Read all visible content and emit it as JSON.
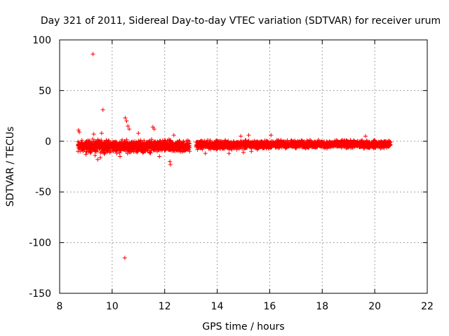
{
  "chart_data": {
    "type": "scatter",
    "title": "Day 321 of 2011, Sidereal Day-to-day VTEC variation (SDTVAR) for receiver urum",
    "xlabel": "GPS time / hours",
    "ylabel": "SDTVAR / TECUs",
    "xlim": [
      8,
      22
    ],
    "ylim": [
      -150,
      100
    ],
    "xticks": [
      8,
      10,
      12,
      14,
      16,
      18,
      20,
      22
    ],
    "yticks": [
      -150,
      -100,
      -50,
      0,
      50,
      100
    ],
    "grid": true,
    "marker": "+",
    "color": "#ff0000",
    "gap": [
      12.95,
      13.2
    ],
    "dense_band": [
      {
        "x_start": 8.7,
        "x_end": 12.95,
        "y_low": -13,
        "y_high": 3
      },
      {
        "x_start": 13.2,
        "x_end": 16.0,
        "y_low": -9,
        "y_high": 2
      },
      {
        "x_start": 16.0,
        "x_end": 20.6,
        "y_low": -8,
        "y_high": 2
      }
    ],
    "outliers": [
      {
        "x": 9.27,
        "y": 86
      },
      {
        "x": 9.65,
        "y": 31
      },
      {
        "x": 10.48,
        "y": -115
      },
      {
        "x": 10.5,
        "y": 23
      },
      {
        "x": 10.55,
        "y": 20
      },
      {
        "x": 10.6,
        "y": 15
      },
      {
        "x": 10.65,
        "y": 12
      },
      {
        "x": 8.72,
        "y": 11
      },
      {
        "x": 8.75,
        "y": 9
      },
      {
        "x": 9.3,
        "y": 7
      },
      {
        "x": 9.6,
        "y": 8
      },
      {
        "x": 11.55,
        "y": 14
      },
      {
        "x": 11.6,
        "y": 12
      },
      {
        "x": 11.0,
        "y": 8
      },
      {
        "x": 12.35,
        "y": 6
      },
      {
        "x": 12.2,
        "y": -20
      },
      {
        "x": 12.22,
        "y": -23
      },
      {
        "x": 9.0,
        "y": -13
      },
      {
        "x": 9.35,
        "y": -14
      },
      {
        "x": 9.45,
        "y": -18
      },
      {
        "x": 9.55,
        "y": -16
      },
      {
        "x": 10.3,
        "y": -15
      },
      {
        "x": 11.8,
        "y": -15
      },
      {
        "x": 8.7,
        "y": -10
      },
      {
        "x": 13.55,
        "y": -12
      },
      {
        "x": 14.45,
        "y": -12
      },
      {
        "x": 15.0,
        "y": -11
      },
      {
        "x": 15.3,
        "y": -10
      },
      {
        "x": 15.2,
        "y": 6
      },
      {
        "x": 14.9,
        "y": 5
      },
      {
        "x": 16.05,
        "y": 6
      },
      {
        "x": 19.65,
        "y": 5
      }
    ]
  }
}
